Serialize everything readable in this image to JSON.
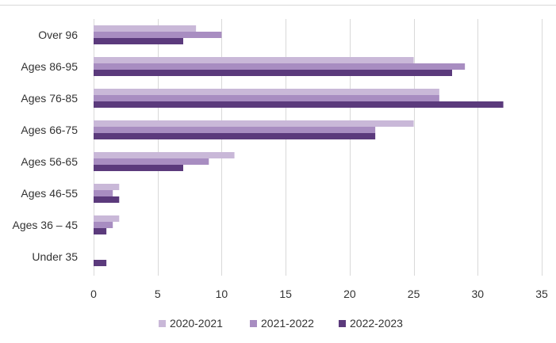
{
  "chart_data": {
    "type": "bar",
    "orientation": "horizontal",
    "categories": [
      "Over 96",
      "Ages 86-95",
      "Ages 76-85",
      "Ages 66-75",
      "Ages 56-65",
      "Ages 46-55",
      "Ages 36 – 45",
      "Under 35"
    ],
    "series": [
      {
        "name": "2020-2021",
        "color": "#c9b8d8",
        "values": [
          8,
          25,
          27,
          25,
          11,
          2,
          2,
          0
        ]
      },
      {
        "name": "2021-2022",
        "color": "#a88dc1",
        "values": [
          10,
          29,
          27,
          22,
          9,
          1.5,
          1.5,
          0
        ]
      },
      {
        "name": "2022-2023",
        "color": "#5b3a7c",
        "values": [
          7,
          28,
          32,
          22,
          7,
          2,
          1,
          1
        ]
      }
    ],
    "xlim": [
      0,
      35
    ],
    "xticks": [
      "0",
      "5",
      "10",
      "15",
      "20",
      "25",
      "30",
      "35"
    ],
    "grid": "vertical",
    "legend_position": "bottom"
  }
}
